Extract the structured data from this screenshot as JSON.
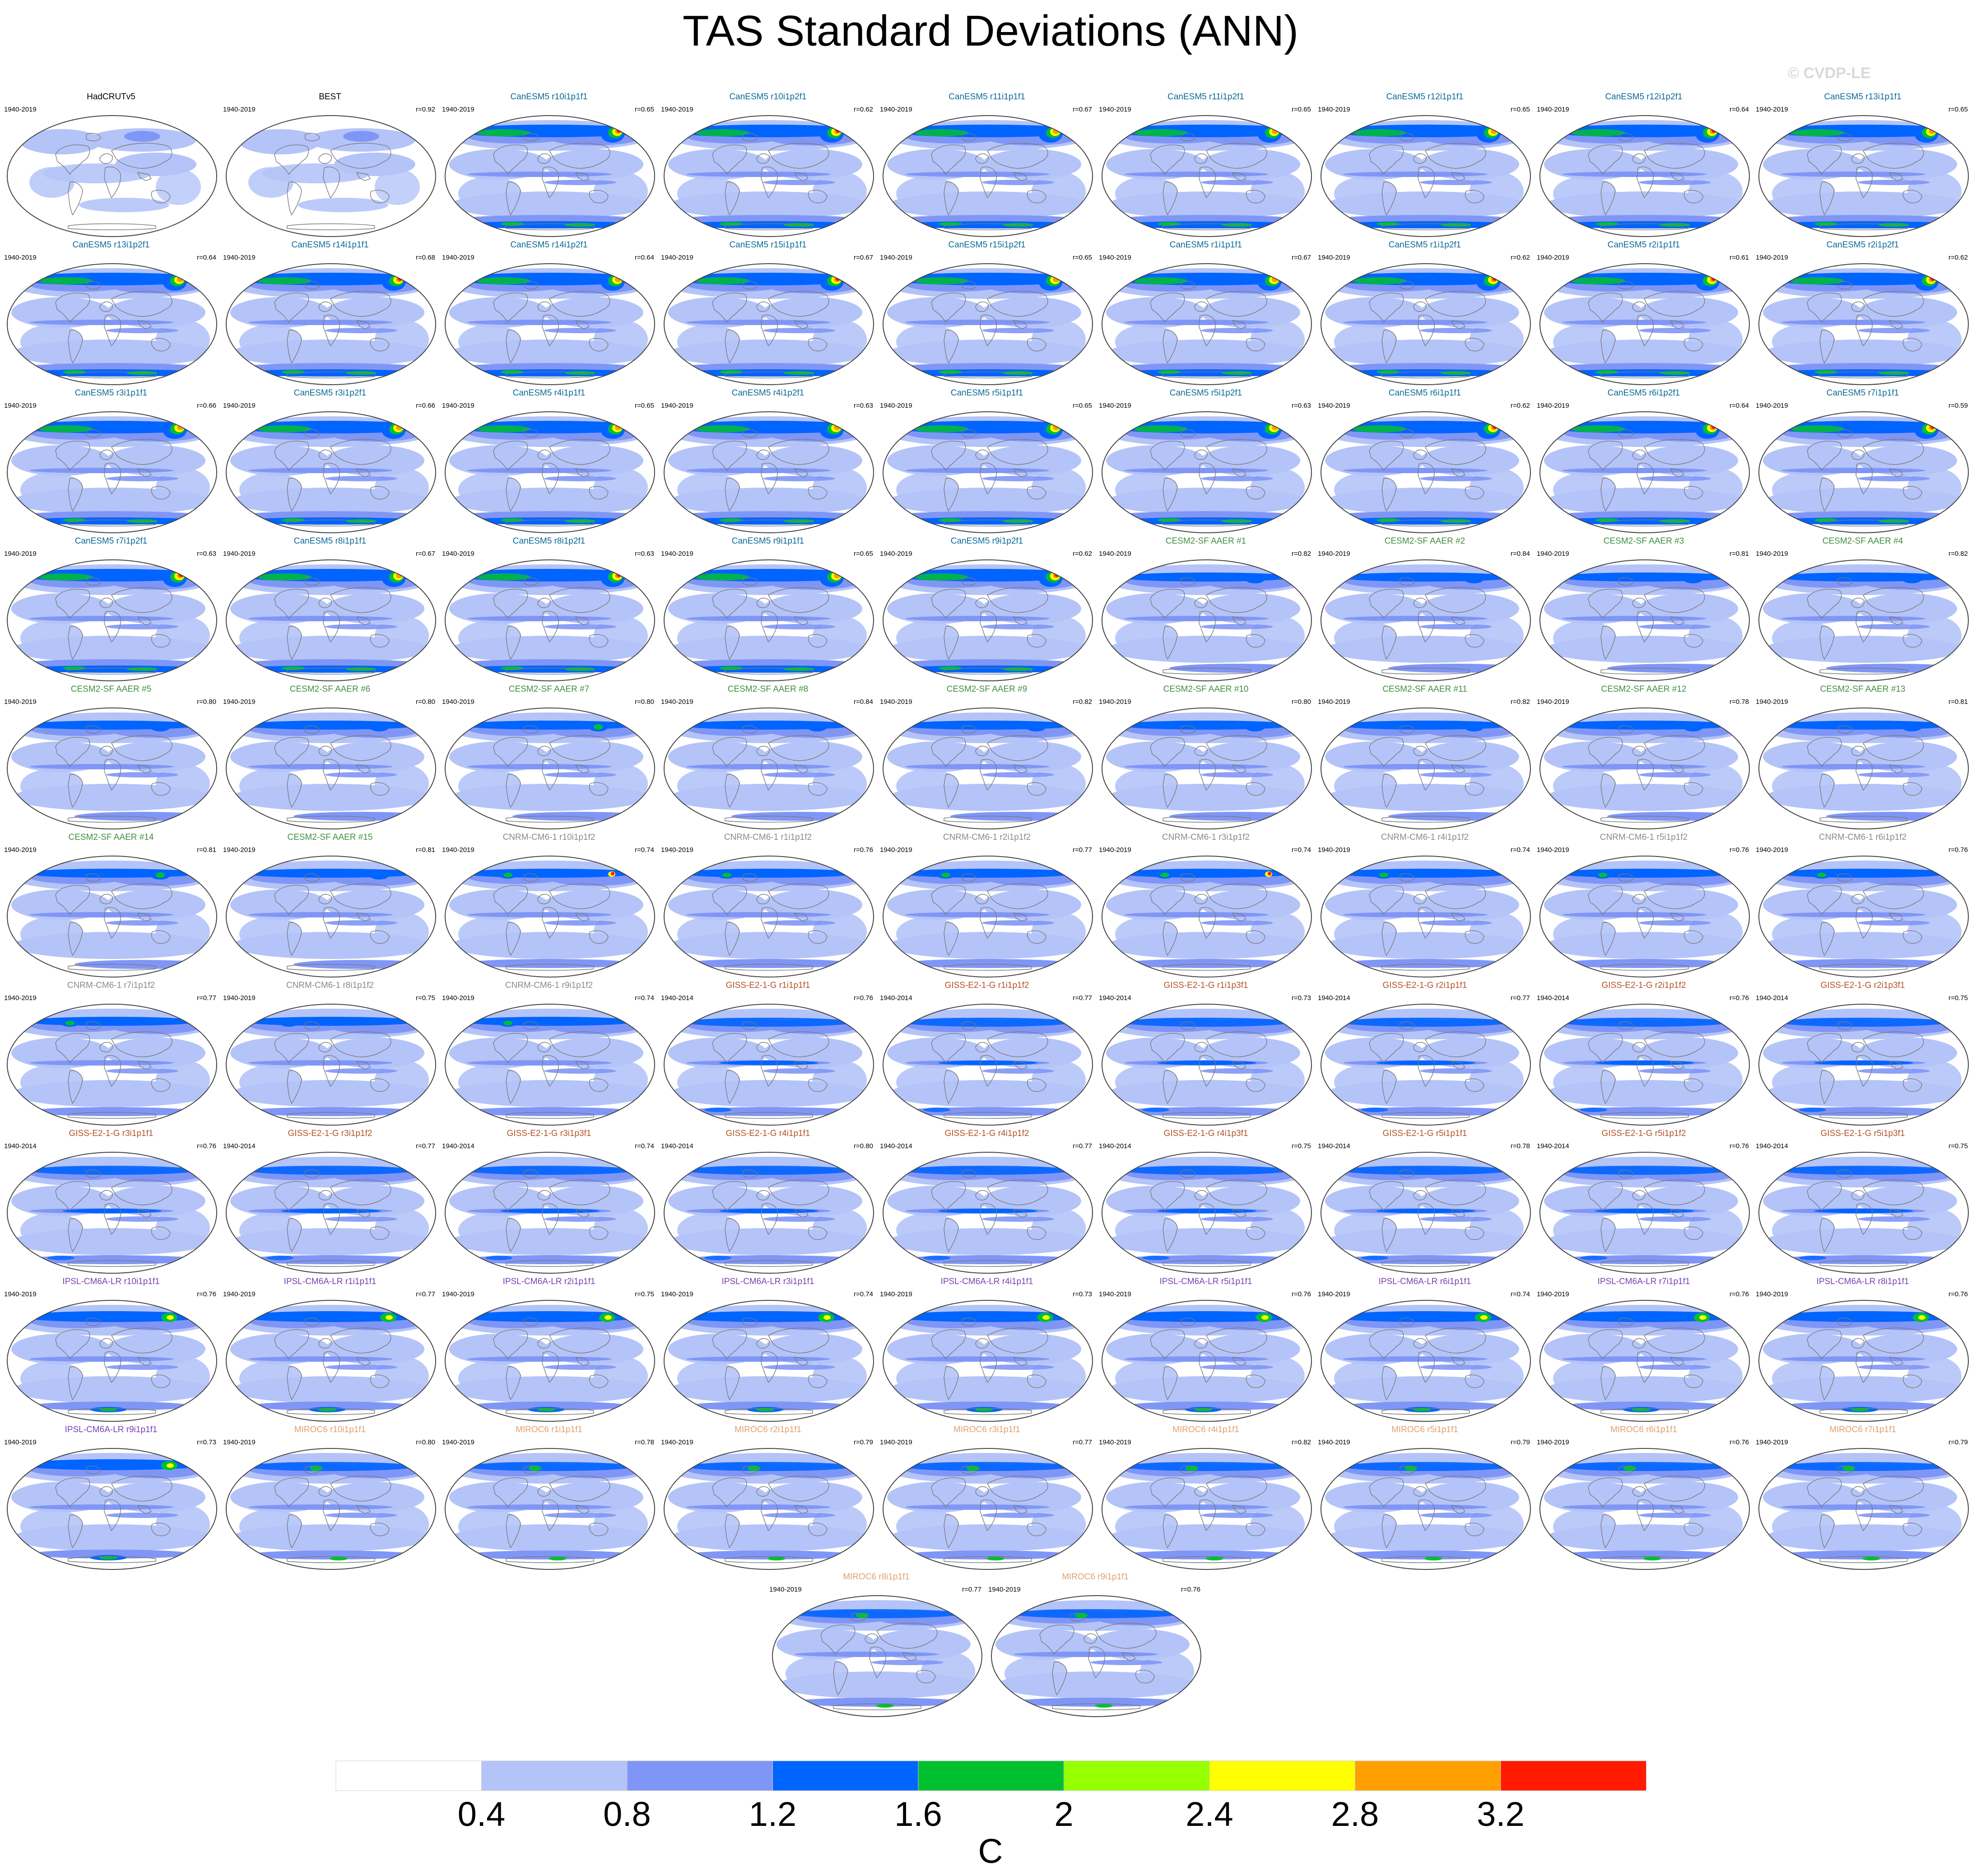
{
  "title": "TAS Standard Deviations (ANN)",
  "watermark": "© CVDP-LE",
  "colors": {
    "ocean_fill": "#ffffff",
    "land_line": "#7a7a7a",
    "panel_outline": "#444444"
  },
  "group_colors": {
    "obs": "#000000",
    "CanESM5": "#0a6a96",
    "CESM2": "#3f8f3f",
    "CNRM": "#8a8a8a",
    "GISS": "#b1532a",
    "IPSL": "#7a3fb6",
    "MIROC": "#e0a070"
  },
  "panels": [
    {
      "title": "HadCRUTv5",
      "years": "1940-2019",
      "r": "",
      "group": "obs",
      "style": "obs",
      "hot": 0
    },
    {
      "title": "BEST",
      "years": "1940-2019",
      "r": "r=0.92",
      "group": "obs",
      "style": "obs",
      "hot": 0
    },
    {
      "title": "CanESM5 r10i1p1f1",
      "years": "1940-2019",
      "r": "r=0.65",
      "group": "CanESM5",
      "style": "canesm",
      "hot": 3
    },
    {
      "title": "CanESM5 r10i1p2f1",
      "years": "1940-2019",
      "r": "r=0.62",
      "group": "CanESM5",
      "style": "canesm",
      "hot": 3
    },
    {
      "title": "CanESM5 r11i1p1f1",
      "years": "1940-2019",
      "r": "r=0.67",
      "group": "CanESM5",
      "style": "canesm",
      "hot": 2
    },
    {
      "title": "CanESM5 r11i1p2f1",
      "years": "1940-2019",
      "r": "r=0.65",
      "group": "CanESM5",
      "style": "canesm",
      "hot": 2
    },
    {
      "title": "CanESM5 r12i1p1f1",
      "years": "1940-2019",
      "r": "r=0.65",
      "group": "CanESM5",
      "style": "canesm",
      "hot": 2
    },
    {
      "title": "CanESM5 r12i1p2f1",
      "years": "1940-2019",
      "r": "r=0.64",
      "group": "CanESM5",
      "style": "canesm",
      "hot": 3
    },
    {
      "title": "CanESM5 r13i1p1f1",
      "years": "1940-2019",
      "r": "r=0.65",
      "group": "CanESM5",
      "style": "canesm",
      "hot": 2
    },
    {
      "title": "CanESM5 r13i1p2f1",
      "years": "1940-2019",
      "r": "r=0.64",
      "group": "CanESM5",
      "style": "canesm",
      "hot": 2
    },
    {
      "title": "CanESM5 r14i1p1f1",
      "years": "1940-2019",
      "r": "r=0.68",
      "group": "CanESM5",
      "style": "canesm",
      "hot": 3
    },
    {
      "title": "CanESM5 r14i1p2f1",
      "years": "1940-2019",
      "r": "r=0.64",
      "group": "CanESM5",
      "style": "canesm",
      "hot": 2
    },
    {
      "title": "CanESM5 r15i1p1f1",
      "years": "1940-2019",
      "r": "r=0.67",
      "group": "CanESM5",
      "style": "canesm",
      "hot": 3
    },
    {
      "title": "CanESM5 r15i1p2f1",
      "years": "1940-2019",
      "r": "r=0.65",
      "group": "CanESM5",
      "style": "canesm",
      "hot": 2
    },
    {
      "title": "CanESM5 r1i1p1f1",
      "years": "1940-2019",
      "r": "r=0.67",
      "group": "CanESM5",
      "style": "canesm",
      "hot": 2
    },
    {
      "title": "CanESM5 r1i1p2f1",
      "years": "1940-2019",
      "r": "r=0.62",
      "group": "CanESM5",
      "style": "canesm",
      "hot": 3
    },
    {
      "title": "CanESM5 r2i1p1f1",
      "years": "1940-2019",
      "r": "r=0.61",
      "group": "CanESM5",
      "style": "canesm",
      "hot": 3
    },
    {
      "title": "CanESM5 r2i1p2f1",
      "years": "1940-2019",
      "r": "r=0.62",
      "group": "CanESM5",
      "style": "canesm",
      "hot": 3
    },
    {
      "title": "CanESM5 r3i1p1f1",
      "years": "1940-2019",
      "r": "r=0.66",
      "group": "CanESM5",
      "style": "canesm",
      "hot": 2
    },
    {
      "title": "CanESM5 r3i1p2f1",
      "years": "1940-2019",
      "r": "r=0.66",
      "group": "CanESM5",
      "style": "canesm",
      "hot": 2
    },
    {
      "title": "CanESM5 r4i1p1f1",
      "years": "1940-2019",
      "r": "r=0.65",
      "group": "CanESM5",
      "style": "canesm",
      "hot": 2
    },
    {
      "title": "CanESM5 r4i1p2f1",
      "years": "1940-2019",
      "r": "r=0.63",
      "group": "CanESM5",
      "style": "canesm",
      "hot": 2
    },
    {
      "title": "CanESM5 r5i1p1f1",
      "years": "1940-2019",
      "r": "r=0.65",
      "group": "CanESM5",
      "style": "canesm",
      "hot": 2
    },
    {
      "title": "CanESM5 r5i1p2f1",
      "years": "1940-2019",
      "r": "r=0.63",
      "group": "CanESM5",
      "style": "canesm",
      "hot": 2
    },
    {
      "title": "CanESM5 r6i1p1f1",
      "years": "1940-2019",
      "r": "r=0.62",
      "group": "CanESM5",
      "style": "canesm",
      "hot": 3
    },
    {
      "title": "CanESM5 r6i1p2f1",
      "years": "1940-2019",
      "r": "r=0.64",
      "group": "CanESM5",
      "style": "canesm",
      "hot": 3
    },
    {
      "title": "CanESM5 r7i1p1f1",
      "years": "1940-2019",
      "r": "r=0.59",
      "group": "CanESM5",
      "style": "canesm",
      "hot": 3
    },
    {
      "title": "CanESM5 r7i1p2f1",
      "years": "1940-2019",
      "r": "r=0.63",
      "group": "CanESM5",
      "style": "canesm",
      "hot": 3
    },
    {
      "title": "CanESM5 r8i1p1f1",
      "years": "1940-2019",
      "r": "r=0.67",
      "group": "CanESM5",
      "style": "canesm",
      "hot": 2
    },
    {
      "title": "CanESM5 r8i1p2f1",
      "years": "1940-2019",
      "r": "r=0.63",
      "group": "CanESM5",
      "style": "canesm",
      "hot": 3
    },
    {
      "title": "CanESM5 r9i1p1f1",
      "years": "1940-2019",
      "r": "r=0.65",
      "group": "CanESM5",
      "style": "canesm",
      "hot": 2
    },
    {
      "title": "CanESM5 r9i1p2f1",
      "years": "1940-2019",
      "r": "r=0.62",
      "group": "CanESM5",
      "style": "canesm",
      "hot": 3
    },
    {
      "title": "CESM2-SF AAER #1",
      "years": "1940-2019",
      "r": "r=0.82",
      "group": "CESM2",
      "style": "cesm",
      "hot": 0
    },
    {
      "title": "CESM2-SF AAER #2",
      "years": "1940-2019",
      "r": "r=0.84",
      "group": "CESM2",
      "style": "cesm",
      "hot": 0
    },
    {
      "title": "CESM2-SF AAER #3",
      "years": "1940-2019",
      "r": "r=0.81",
      "group": "CESM2",
      "style": "cesm",
      "hot": 0
    },
    {
      "title": "CESM2-SF AAER #4",
      "years": "1940-2019",
      "r": "r=0.82",
      "group": "CESM2",
      "style": "cesm",
      "hot": 0
    },
    {
      "title": "CESM2-SF AAER #5",
      "years": "1940-2019",
      "r": "r=0.80",
      "group": "CESM2",
      "style": "cesm",
      "hot": 0
    },
    {
      "title": "CESM2-SF AAER #6",
      "years": "1940-2019",
      "r": "r=0.80",
      "group": "CESM2",
      "style": "cesm",
      "hot": 0
    },
    {
      "title": "CESM2-SF AAER #7",
      "years": "1940-2019",
      "r": "r=0.80",
      "group": "CESM2",
      "style": "cesm",
      "hot": 1
    },
    {
      "title": "CESM2-SF AAER #8",
      "years": "1940-2019",
      "r": "r=0.84",
      "group": "CESM2",
      "style": "cesm",
      "hot": 0
    },
    {
      "title": "CESM2-SF AAER #9",
      "years": "1940-2019",
      "r": "r=0.82",
      "group": "CESM2",
      "style": "cesm",
      "hot": 0
    },
    {
      "title": "CESM2-SF AAER #10",
      "years": "1940-2019",
      "r": "r=0.80",
      "group": "CESM2",
      "style": "cesm",
      "hot": 0
    },
    {
      "title": "CESM2-SF AAER #11",
      "years": "1940-2019",
      "r": "r=0.82",
      "group": "CESM2",
      "style": "cesm",
      "hot": 0
    },
    {
      "title": "CESM2-SF AAER #12",
      "years": "1940-2019",
      "r": "r=0.78",
      "group": "CESM2",
      "style": "cesm",
      "hot": 0
    },
    {
      "title": "CESM2-SF AAER #13",
      "years": "1940-2019",
      "r": "r=0.81",
      "group": "CESM2",
      "style": "cesm",
      "hot": 0
    },
    {
      "title": "CESM2-SF AAER #14",
      "years": "1940-2019",
      "r": "r=0.81",
      "group": "CESM2",
      "style": "cesm",
      "hot": 1
    },
    {
      "title": "CESM2-SF AAER #15",
      "years": "1940-2019",
      "r": "r=0.81",
      "group": "CESM2",
      "style": "cesm",
      "hot": 0
    },
    {
      "title": "CNRM-CM6-1 r10i1p1f2",
      "years": "1940-2019",
      "r": "r=0.74",
      "group": "CNRM",
      "style": "cnrm",
      "hot": 2
    },
    {
      "title": "CNRM-CM6-1 r1i1p1f2",
      "years": "1940-2019",
      "r": "r=0.76",
      "group": "CNRM",
      "style": "cnrm",
      "hot": 1
    },
    {
      "title": "CNRM-CM6-1 r2i1p1f2",
      "years": "1940-2019",
      "r": "r=0.77",
      "group": "CNRM",
      "style": "cnrm",
      "hot": 1
    },
    {
      "title": "CNRM-CM6-1 r3i1p1f2",
      "years": "1940-2019",
      "r": "r=0.74",
      "group": "CNRM",
      "style": "cnrm",
      "hot": 2
    },
    {
      "title": "CNRM-CM6-1 r4i1p1f2",
      "years": "1940-2019",
      "r": "r=0.74",
      "group": "CNRM",
      "style": "cnrm",
      "hot": 1
    },
    {
      "title": "CNRM-CM6-1 r5i1p1f2",
      "years": "1940-2019",
      "r": "r=0.76",
      "group": "CNRM",
      "style": "cnrm",
      "hot": 1
    },
    {
      "title": "CNRM-CM6-1 r6i1p1f2",
      "years": "1940-2019",
      "r": "r=0.76",
      "group": "CNRM",
      "style": "cnrm",
      "hot": 1
    },
    {
      "title": "CNRM-CM6-1 r7i1p1f2",
      "years": "1940-2019",
      "r": "r=0.77",
      "group": "CNRM",
      "style": "cnrm",
      "hot": 1
    },
    {
      "title": "CNRM-CM6-1 r8i1p1f2",
      "years": "1940-2019",
      "r": "r=0.75",
      "group": "CNRM",
      "style": "cnrm",
      "hot": 0
    },
    {
      "title": "CNRM-CM6-1 r9i1p1f2",
      "years": "1940-2019",
      "r": "r=0.74",
      "group": "CNRM",
      "style": "cnrm",
      "hot": 1
    },
    {
      "title": "GISS-E2-1-G r1i1p1f1",
      "years": "1940-2014",
      "r": "r=0.76",
      "group": "GISS",
      "style": "giss",
      "hot": 0
    },
    {
      "title": "GISS-E2-1-G r1i1p1f2",
      "years": "1940-2014",
      "r": "r=0.77",
      "group": "GISS",
      "style": "giss",
      "hot": 0
    },
    {
      "title": "GISS-E2-1-G r1i1p3f1",
      "years": "1940-2014",
      "r": "r=0.73",
      "group": "GISS",
      "style": "giss",
      "hot": 0
    },
    {
      "title": "GISS-E2-1-G r2i1p1f1",
      "years": "1940-2014",
      "r": "r=0.77",
      "group": "GISS",
      "style": "giss",
      "hot": 0
    },
    {
      "title": "GISS-E2-1-G r2i1p1f2",
      "years": "1940-2014",
      "r": "r=0.76",
      "group": "GISS",
      "style": "giss",
      "hot": 0
    },
    {
      "title": "GISS-E2-1-G r2i1p3f1",
      "years": "1940-2014",
      "r": "r=0.75",
      "group": "GISS",
      "style": "giss",
      "hot": 0
    },
    {
      "title": "GISS-E2-1-G r3i1p1f1",
      "years": "1940-2014",
      "r": "r=0.76",
      "group": "GISS",
      "style": "giss",
      "hot": 0
    },
    {
      "title": "GISS-E2-1-G r3i1p1f2",
      "years": "1940-2014",
      "r": "r=0.77",
      "group": "GISS",
      "style": "giss",
      "hot": 0
    },
    {
      "title": "GISS-E2-1-G r3i1p3f1",
      "years": "1940-2014",
      "r": "r=0.74",
      "group": "GISS",
      "style": "giss",
      "hot": 0
    },
    {
      "title": "GISS-E2-1-G r4i1p1f1",
      "years": "1940-2014",
      "r": "r=0.80",
      "group": "GISS",
      "style": "giss",
      "hot": 0
    },
    {
      "title": "GISS-E2-1-G r4i1p1f2",
      "years": "1940-2014",
      "r": "r=0.77",
      "group": "GISS",
      "style": "giss",
      "hot": 0
    },
    {
      "title": "GISS-E2-1-G r4i1p3f1",
      "years": "1940-2014",
      "r": "r=0.75",
      "group": "GISS",
      "style": "giss",
      "hot": 0
    },
    {
      "title": "GISS-E2-1-G r5i1p1f1",
      "years": "1940-2014",
      "r": "r=0.78",
      "group": "GISS",
      "style": "giss",
      "hot": 0
    },
    {
      "title": "GISS-E2-1-G r5i1p1f2",
      "years": "1940-2014",
      "r": "r=0.76",
      "group": "GISS",
      "style": "giss",
      "hot": 0
    },
    {
      "title": "GISS-E2-1-G r5i1p3f1",
      "years": "1940-2014",
      "r": "r=0.75",
      "group": "GISS",
      "style": "giss",
      "hot": 0
    },
    {
      "title": "IPSL-CM6A-LR r10i1p1f1",
      "years": "1940-2019",
      "r": "r=0.76",
      "group": "IPSL",
      "style": "ipsl",
      "hot": 1
    },
    {
      "title": "IPSL-CM6A-LR r1i1p1f1",
      "years": "1940-2019",
      "r": "r=0.77",
      "group": "IPSL",
      "style": "ipsl",
      "hot": 1
    },
    {
      "title": "IPSL-CM6A-LR r2i1p1f1",
      "years": "1940-2019",
      "r": "r=0.75",
      "group": "IPSL",
      "style": "ipsl",
      "hot": 1
    },
    {
      "title": "IPSL-CM6A-LR r3i1p1f1",
      "years": "1940-2019",
      "r": "r=0.74",
      "group": "IPSL",
      "style": "ipsl",
      "hot": 1
    },
    {
      "title": "IPSL-CM6A-LR r4i1p1f1",
      "years": "1940-2019",
      "r": "r=0.73",
      "group": "IPSL",
      "style": "ipsl",
      "hot": 1
    },
    {
      "title": "IPSL-CM6A-LR r5i1p1f1",
      "years": "1940-2019",
      "r": "r=0.76",
      "group": "IPSL",
      "style": "ipsl",
      "hot": 1
    },
    {
      "title": "IPSL-CM6A-LR r6i1p1f1",
      "years": "1940-2019",
      "r": "r=0.74",
      "group": "IPSL",
      "style": "ipsl",
      "hot": 1
    },
    {
      "title": "IPSL-CM6A-LR r7i1p1f1",
      "years": "1940-2019",
      "r": "r=0.76",
      "group": "IPSL",
      "style": "ipsl",
      "hot": 1
    },
    {
      "title": "IPSL-CM6A-LR r8i1p1f1",
      "years": "1940-2019",
      "r": "r=0.76",
      "group": "IPSL",
      "style": "ipsl",
      "hot": 1
    },
    {
      "title": "IPSL-CM6A-LR r9i1p1f1",
      "years": "1940-2019",
      "r": "r=0.73",
      "group": "IPSL",
      "style": "ipsl",
      "hot": 1
    },
    {
      "title": "MIROC6 r10i1p1f1",
      "years": "1940-2019",
      "r": "r=0.80",
      "group": "MIROC",
      "style": "miroc",
      "hot": 0
    },
    {
      "title": "MIROC6 r1i1p1f1",
      "years": "1940-2019",
      "r": "r=0.78",
      "group": "MIROC",
      "style": "miroc",
      "hot": 0
    },
    {
      "title": "MIROC6 r2i1p1f1",
      "years": "1940-2019",
      "r": "r=0.79",
      "group": "MIROC",
      "style": "miroc",
      "hot": 0
    },
    {
      "title": "MIROC6 r3i1p1f1",
      "years": "1940-2019",
      "r": "r=0.77",
      "group": "MIROC",
      "style": "miroc",
      "hot": 0
    },
    {
      "title": "MIROC6 r4i1p1f1",
      "years": "1940-2019",
      "r": "r=0.82",
      "group": "MIROC",
      "style": "miroc",
      "hot": 0
    },
    {
      "title": "MIROC6 r5i1p1f1",
      "years": "1940-2019",
      "r": "r=0.79",
      "group": "MIROC",
      "style": "miroc",
      "hot": 0
    },
    {
      "title": "MIROC6 r6i1p1f1",
      "years": "1940-2019",
      "r": "r=0.76",
      "group": "MIROC",
      "style": "miroc",
      "hot": 0
    },
    {
      "title": "MIROC6 r7i1p1f1",
      "years": "1940-2019",
      "r": "r=0.79",
      "group": "MIROC",
      "style": "miroc",
      "hot": 0
    },
    {
      "title": "MIROC6 r8i1p1f1",
      "years": "1940-2019",
      "r": "r=0.77",
      "group": "MIROC",
      "style": "miroc",
      "hot": 0
    },
    {
      "title": "MIROC6 r9i1p1f1",
      "years": "1940-2019",
      "r": "r=0.76",
      "group": "MIROC",
      "style": "miroc",
      "hot": 0
    }
  ],
  "colorbar": {
    "levels": [
      "0.4",
      "0.8",
      "1.2",
      "1.6",
      "2",
      "2.4",
      "2.8",
      "3.2"
    ],
    "colors": [
      "#ffffff",
      "#b4c4f8",
      "#8096f6",
      "#0064ff",
      "#00c030",
      "#96ff00",
      "#ffff00",
      "#ffa000",
      "#ff1a00"
    ],
    "units": "C"
  }
}
